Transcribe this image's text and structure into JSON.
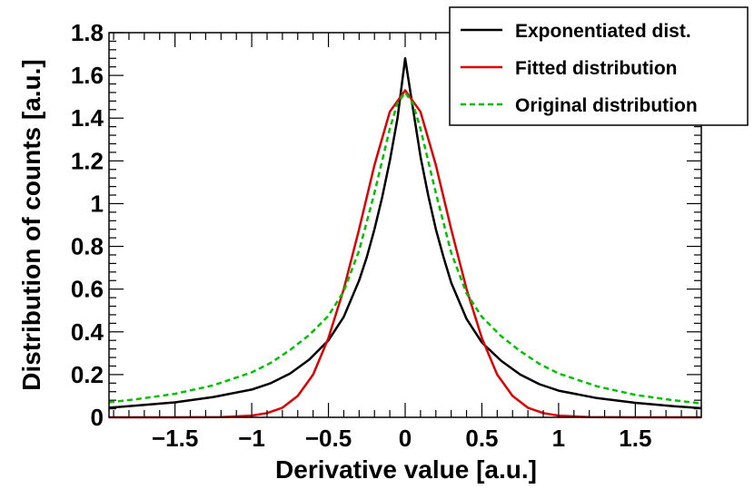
{
  "chart_data": {
    "type": "line",
    "title": "",
    "xlabel": "Derivative value  [a.u.]",
    "ylabel": "Distribution of counts  [a.u.]",
    "xlim": [
      -1.93,
      1.93
    ],
    "ylim": [
      0,
      1.8
    ],
    "x_ticks": [
      -1.5,
      -1,
      -0.5,
      0,
      0.5,
      1,
      1.5
    ],
    "x_tick_labels": [
      "−1.5",
      "−1",
      "−0.5",
      "0",
      "0.5",
      "1",
      "1.5"
    ],
    "y_ticks": [
      0,
      0.2,
      0.4,
      0.6,
      0.8,
      1,
      1.2,
      1.4,
      1.6,
      1.8
    ],
    "y_tick_labels": [
      "0",
      "0.2",
      "0.4",
      "0.6",
      "0.8",
      "1",
      "1.2",
      "1.4",
      "1.6",
      "1.8"
    ],
    "grid": false,
    "legend_position": "top-right",
    "series": [
      {
        "name": "Exponentiated dist.",
        "color": "#000000",
        "style": "solid",
        "x": [
          -1.93,
          -1.75,
          -1.5,
          -1.25,
          -1.0,
          -0.875,
          -0.75,
          -0.625,
          -0.5,
          -0.4,
          -0.3,
          -0.25,
          -0.2,
          -0.15,
          -0.1,
          -0.05,
          0,
          0.05,
          0.1,
          0.15,
          0.2,
          0.25,
          0.3,
          0.4,
          0.5,
          0.625,
          0.75,
          0.875,
          1.0,
          1.25,
          1.5,
          1.75,
          1.93
        ],
        "y": [
          0.045,
          0.055,
          0.07,
          0.095,
          0.13,
          0.16,
          0.205,
          0.27,
          0.36,
          0.47,
          0.64,
          0.75,
          0.88,
          1.03,
          1.2,
          1.4,
          1.68,
          1.45,
          1.22,
          1.04,
          0.88,
          0.75,
          0.63,
          0.46,
          0.35,
          0.265,
          0.2,
          0.155,
          0.125,
          0.09,
          0.068,
          0.052,
          0.043
        ]
      },
      {
        "name": "Fitted distribution",
        "color": "#e00000",
        "style": "solid",
        "x": [
          -1.93,
          -1.5,
          -1.2,
          -1.0,
          -0.9,
          -0.8,
          -0.7,
          -0.6,
          -0.5,
          -0.4,
          -0.3,
          -0.2,
          -0.1,
          0,
          0.1,
          0.2,
          0.3,
          0.4,
          0.5,
          0.6,
          0.7,
          0.8,
          0.9,
          1.0,
          1.2,
          1.5,
          1.93
        ],
        "y": [
          0,
          0,
          0.001,
          0.008,
          0.02,
          0.045,
          0.1,
          0.2,
          0.37,
          0.6,
          0.88,
          1.18,
          1.43,
          1.53,
          1.43,
          1.18,
          0.88,
          0.6,
          0.37,
          0.2,
          0.1,
          0.045,
          0.02,
          0.008,
          0.001,
          0,
          0
        ]
      },
      {
        "name": "Original distribution",
        "color": "#00c000",
        "style": "dashed",
        "x": [
          -1.93,
          -1.75,
          -1.5,
          -1.25,
          -1.0,
          -0.875,
          -0.75,
          -0.625,
          -0.5,
          -0.4,
          -0.3,
          -0.2,
          -0.1,
          -0.05,
          0,
          0.05,
          0.1,
          0.2,
          0.3,
          0.4,
          0.5,
          0.625,
          0.75,
          0.875,
          1.0,
          1.25,
          1.5,
          1.75,
          1.93
        ],
        "y": [
          0.07,
          0.085,
          0.11,
          0.15,
          0.21,
          0.255,
          0.315,
          0.385,
          0.475,
          0.59,
          0.78,
          1.05,
          1.35,
          1.47,
          1.52,
          1.47,
          1.35,
          1.05,
          0.77,
          0.58,
          0.47,
          0.38,
          0.31,
          0.25,
          0.205,
          0.145,
          0.105,
          0.08,
          0.065
        ]
      }
    ]
  }
}
